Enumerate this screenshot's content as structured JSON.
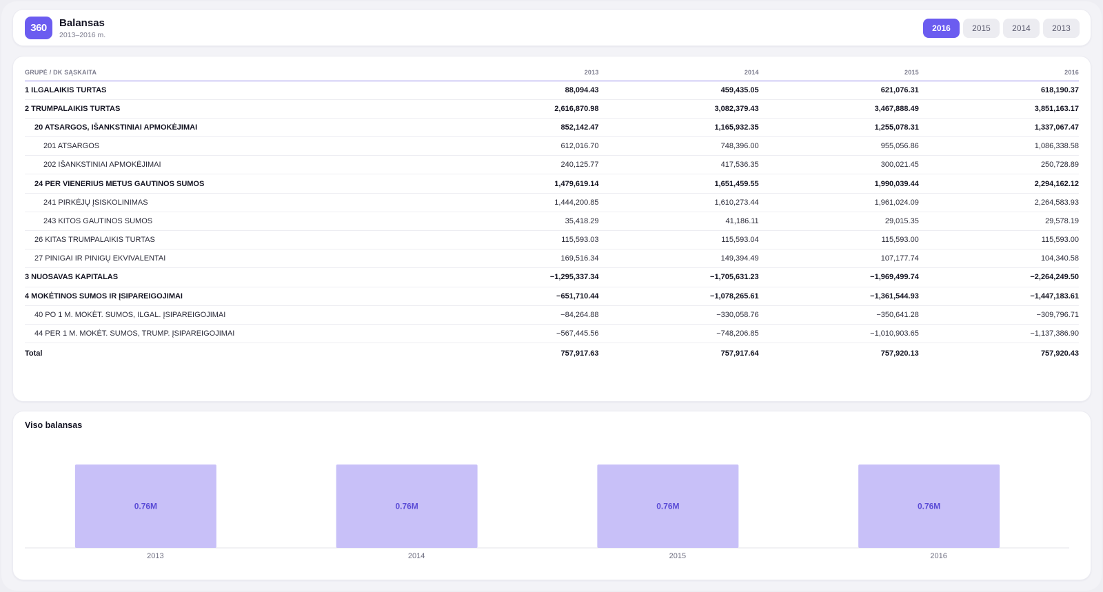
{
  "header": {
    "logo": "360",
    "title": "Balansas",
    "subtitle": "2013–2016 m.",
    "years": [
      "2016",
      "2015",
      "2014",
      "2013"
    ],
    "active_year": "2016"
  },
  "table": {
    "columns": [
      "GRUPĖ / DK SĄSKAITA",
      "2013",
      "2014",
      "2015",
      "2016"
    ],
    "rows": [
      {
        "level": 0,
        "name": "1 ILGALAIKIS TURTAS",
        "values": [
          "88,094.43",
          "459,435.05",
          "621,076.31",
          "618,190.37"
        ]
      },
      {
        "level": 0,
        "name": "2 TRUMPALAIKIS TURTAS",
        "values": [
          "2,616,870.98",
          "3,082,379.43",
          "3,467,888.49",
          "3,851,163.17"
        ]
      },
      {
        "level": 1,
        "name": "20 ATSARGOS, IŠANKSTINIAI APMOKĖJIMAI",
        "values": [
          "852,142.47",
          "1,165,932.35",
          "1,255,078.31",
          "1,337,067.47"
        ]
      },
      {
        "level": 2,
        "name": "201 ATSARGOS",
        "values": [
          "612,016.70",
          "748,396.00",
          "955,056.86",
          "1,086,338.58"
        ]
      },
      {
        "level": 2,
        "name": "202 IŠANKSTINIAI APMOKĖJIMAI",
        "values": [
          "240,125.77",
          "417,536.35",
          "300,021.45",
          "250,728.89"
        ]
      },
      {
        "level": 1,
        "name": "24 PER VIENERIUS METUS GAUTINOS SUMOS",
        "values": [
          "1,479,619.14",
          "1,651,459.55",
          "1,990,039.44",
          "2,294,162.12"
        ]
      },
      {
        "level": 2,
        "name": "241 PIRKĖJŲ ĮSISKOLINIMAS",
        "values": [
          "1,444,200.85",
          "1,610,273.44",
          "1,961,024.09",
          "2,264,583.93"
        ]
      },
      {
        "level": 2,
        "name": "243 KITOS GAUTINOS SUMOS",
        "values": [
          "35,418.29",
          "41,186.11",
          "29,015.35",
          "29,578.19"
        ]
      },
      {
        "level": 3,
        "name": "26 KITAS TRUMPALAIKIS TURTAS",
        "values": [
          "115,593.03",
          "115,593.04",
          "115,593.00",
          "115,593.00"
        ]
      },
      {
        "level": 3,
        "name": "27 PINIGAI IR PINIGŲ EKVIVALENTAI",
        "values": [
          "169,516.34",
          "149,394.49",
          "107,177.74",
          "104,340.58"
        ]
      },
      {
        "level": 0,
        "name": "3 NUOSAVAS KAPITALAS",
        "values": [
          "−1,295,337.34",
          "−1,705,631.23",
          "−1,969,499.74",
          "−2,264,249.50"
        ]
      },
      {
        "level": 0,
        "name": "4 MOKĖTINOS SUMOS IR ĮSIPAREIGOJIMAI",
        "values": [
          "−651,710.44",
          "−1,078,265.61",
          "−1,361,544.93",
          "−1,447,183.61"
        ]
      },
      {
        "level": 3,
        "name": "40 PO 1 M. MOKĖT. SUMOS, ILGAL. ĮSIPAREIGOJIMAI",
        "values": [
          "−84,264.88",
          "−330,058.76",
          "−350,641.28",
          "−309,796.71"
        ]
      },
      {
        "level": 3,
        "name": "44 PER 1 M. MOKĖT. SUMOS, TRUMP. ĮSIPAREIGOJIMAI",
        "values": [
          "−567,445.56",
          "−748,206.85",
          "−1,010,903.65",
          "−1,137,386.90"
        ]
      }
    ],
    "total": {
      "name": "Total",
      "values": [
        "757,917.63",
        "757,917.64",
        "757,920.13",
        "757,920.43"
      ]
    }
  },
  "chart_card": {
    "title": "Viso balansas"
  },
  "chart_data": {
    "type": "bar",
    "title": "Viso balansas",
    "categories": [
      "2013",
      "2014",
      "2015",
      "2016"
    ],
    "values": [
      757917.63,
      757917.64,
      757920.13,
      757920.43
    ],
    "data_labels": [
      "0.76M",
      "0.76M",
      "0.76M",
      "0.76M"
    ],
    "ylim": [
      0,
      757920.43
    ],
    "grid": false,
    "bar_color": "#c8c0f8",
    "label_color": "#5a4bd6"
  },
  "colors": {
    "accent": "#6b5cf0",
    "bar": "#c8c0f8"
  }
}
